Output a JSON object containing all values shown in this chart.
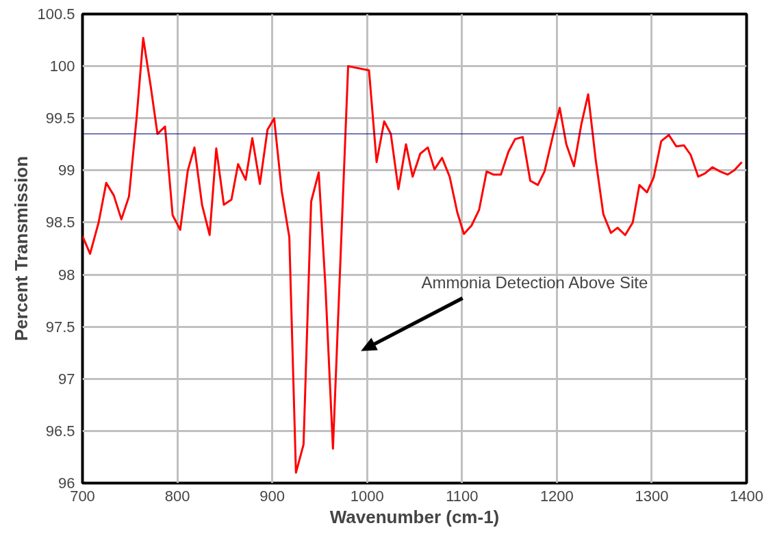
{
  "chart_data": {
    "type": "line",
    "xlabel": "Wavenumber (cm-1)",
    "ylabel": "Percent Transmission",
    "x": [
      700,
      708,
      717,
      725,
      733,
      741,
      749,
      757,
      764,
      772,
      779,
      787,
      795,
      803,
      811,
      818,
      826,
      834,
      841,
      849,
      857,
      864,
      872,
      879,
      887,
      895,
      902,
      910,
      918,
      925,
      933,
      941,
      949,
      956,
      964,
      980,
      1002,
      1010,
      1018,
      1025,
      1033,
      1041,
      1048,
      1056,
      1064,
      1071,
      1079,
      1087,
      1095,
      1102,
      1110,
      1118,
      1126,
      1133,
      1141,
      1149,
      1156,
      1164,
      1172,
      1180,
      1187,
      1195,
      1203,
      1210,
      1218,
      1226,
      1233,
      1241,
      1249,
      1257,
      1264,
      1272,
      1280,
      1287,
      1295,
      1302,
      1310,
      1318,
      1326,
      1334,
      1341,
      1349,
      1356,
      1364,
      1372,
      1380,
      1387,
      1395
    ],
    "series": [
      {
        "color": "#ff0000",
        "values": [
          98.37,
          98.2,
          98.5,
          98.88,
          98.76,
          98.53,
          98.75,
          99.5,
          100.27,
          99.8,
          99.35,
          99.42,
          98.57,
          98.43,
          99.0,
          99.22,
          98.67,
          98.38,
          99.21,
          98.67,
          98.72,
          99.06,
          98.91,
          99.31,
          98.87,
          99.39,
          99.5,
          98.8,
          98.36,
          96.1,
          96.37,
          98.7,
          98.98,
          97.9,
          96.33,
          100.0,
          99.96,
          99.08,
          99.47,
          99.35,
          98.82,
          99.25,
          98.94,
          99.16,
          99.22,
          99.01,
          99.12,
          98.94,
          98.6,
          98.39,
          98.47,
          98.62,
          98.99,
          98.96,
          98.96,
          99.18,
          99.3,
          99.32,
          98.9,
          98.86,
          98.99,
          99.3,
          99.6,
          99.25,
          99.04,
          99.45,
          99.73,
          99.1,
          98.58,
          98.4,
          98.45,
          98.38,
          98.5,
          98.86,
          98.79,
          98.93,
          99.28,
          99.34,
          99.23,
          99.24,
          99.15,
          98.94,
          98.97,
          99.03,
          98.99,
          98.96,
          99.0,
          99.08
        ]
      }
    ],
    "xlim": [
      700,
      1400
    ],
    "xticks": [
      700,
      800,
      900,
      1000,
      1100,
      1200,
      1300,
      1400
    ],
    "ylim": [
      96,
      100.5
    ],
    "yticks": [
      96,
      96.5,
      97,
      97.5,
      98,
      98.5,
      99,
      99.5,
      100,
      100.5
    ],
    "grid": true,
    "marker": "none",
    "line_style": "solid",
    "ref_lines": [
      {
        "axis": "y",
        "value": 99.35,
        "color": "#000080"
      }
    ],
    "annotations": [
      "Ammonia Detection Above Site"
    ]
  }
}
